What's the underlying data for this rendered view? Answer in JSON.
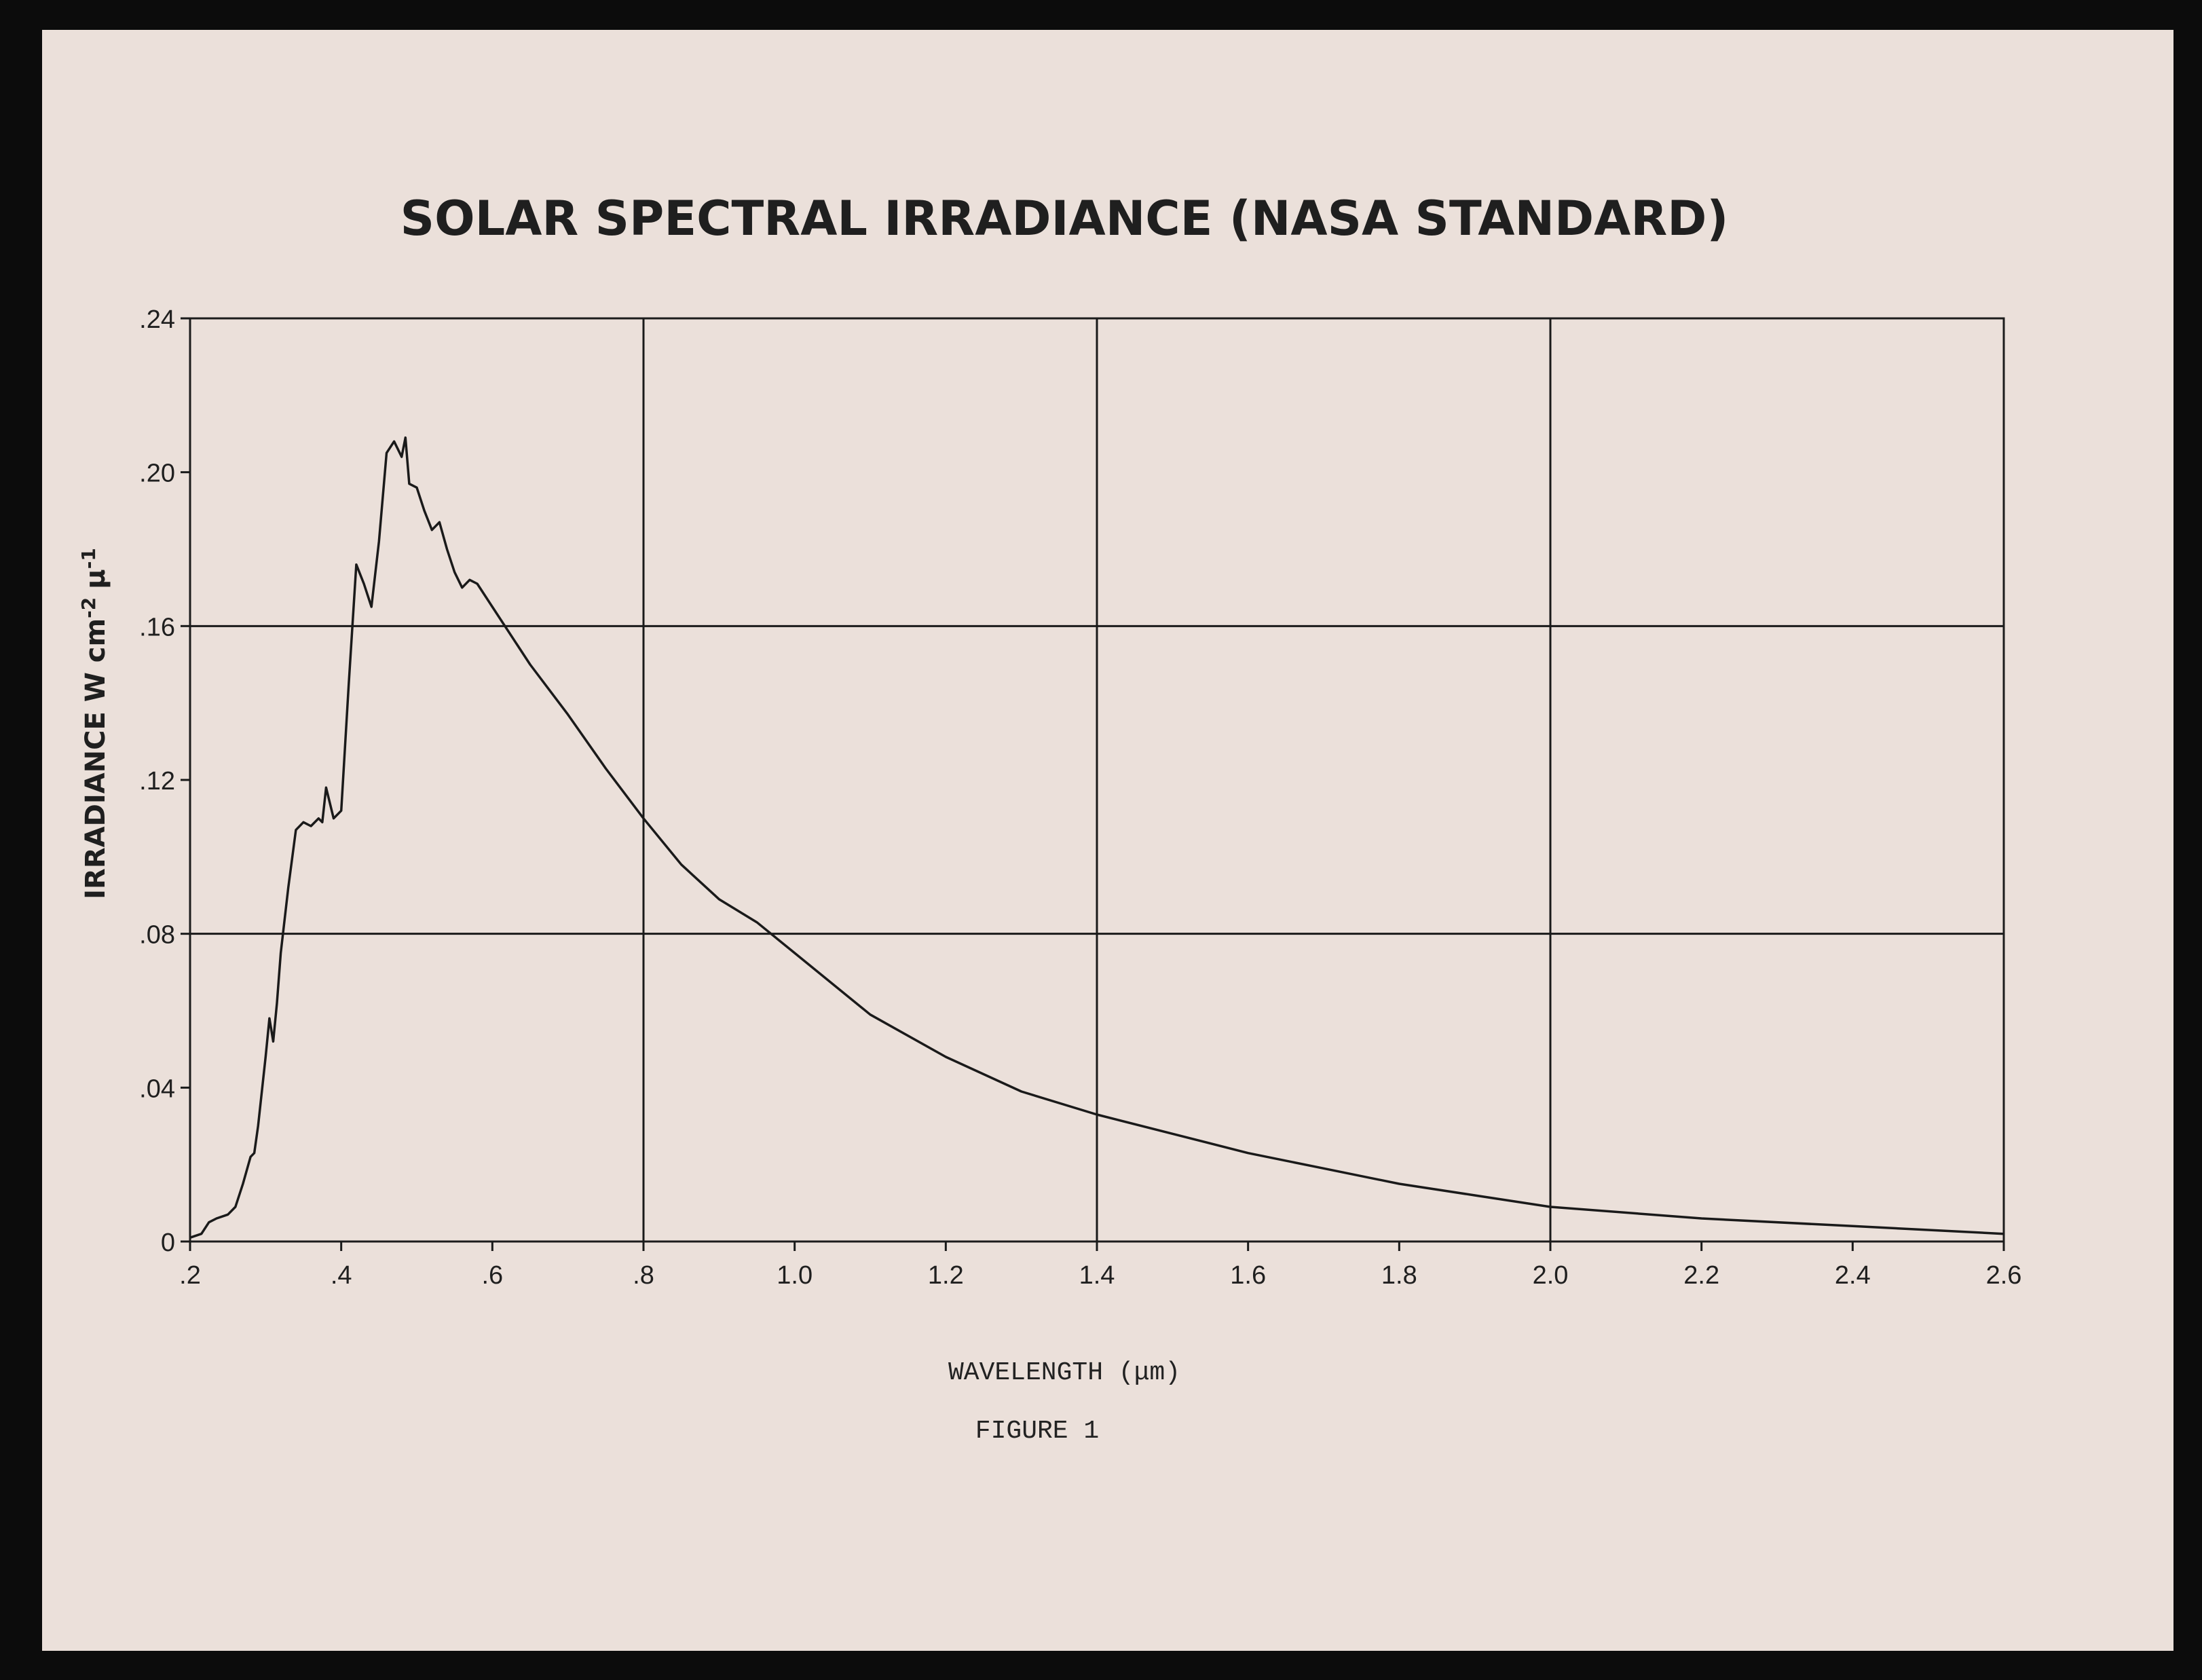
{
  "chart_data": {
    "type": "line",
    "title": "SOLAR SPECTRAL IRRADIANCE (NASA STANDARD)",
    "xlabel": "WAVELENGTH (μm)",
    "ylabel": "IRRADIANCE W cm",
    "ylabel_sup1": "-2",
    "ylabel_mu": "μ",
    "ylabel_sup2": "-1",
    "caption": "FIGURE 1",
    "xlim": [
      0.2,
      2.6
    ],
    "ylim": [
      0,
      0.24
    ],
    "grid": true,
    "x_ticks": [
      0.2,
      0.4,
      0.6,
      0.8,
      1.0,
      1.2,
      1.4,
      1.6,
      1.8,
      2.0,
      2.2,
      2.4,
      2.6
    ],
    "x_tick_labels": [
      ".2",
      ".4",
      ".6",
      ".8",
      "1.0",
      "1.2",
      "1.4",
      "1.6",
      "1.8",
      "2.0",
      "2.2",
      "2.4",
      "2.6"
    ],
    "y_ticks": [
      0,
      0.04,
      0.08,
      0.12,
      0.16,
      0.2,
      0.24
    ],
    "y_tick_labels": [
      "0",
      ".04",
      ".08",
      ".12",
      ".16",
      ".20",
      ".24"
    ],
    "x_grid": [
      0.8,
      1.4,
      2.0
    ],
    "y_grid": [
      0.08,
      0.16
    ],
    "color": "#1a1a1a",
    "series": [
      {
        "x": [
          0.2,
          0.215,
          0.225,
          0.235,
          0.25,
          0.26,
          0.27,
          0.28,
          0.285,
          0.29,
          0.3,
          0.305,
          0.31,
          0.315,
          0.32,
          0.33,
          0.34,
          0.35,
          0.36,
          0.37,
          0.375,
          0.38,
          0.39,
          0.4,
          0.41,
          0.42,
          0.43,
          0.44,
          0.45,
          0.46,
          0.47,
          0.48,
          0.485,
          0.49,
          0.5,
          0.51,
          0.52,
          0.53,
          0.54,
          0.55,
          0.56,
          0.57,
          0.58,
          0.6,
          0.65,
          0.7,
          0.75,
          0.8,
          0.85,
          0.9,
          0.95,
          1.0,
          1.1,
          1.2,
          1.3,
          1.4,
          1.5,
          1.6,
          1.7,
          1.8,
          1.9,
          2.0,
          2.2,
          2.4,
          2.6
        ],
        "values": [
          0.001,
          0.002,
          0.005,
          0.006,
          0.007,
          0.009,
          0.015,
          0.022,
          0.023,
          0.03,
          0.048,
          0.058,
          0.052,
          0.062,
          0.075,
          0.092,
          0.107,
          0.109,
          0.108,
          0.11,
          0.109,
          0.118,
          0.11,
          0.112,
          0.145,
          0.176,
          0.171,
          0.165,
          0.182,
          0.205,
          0.208,
          0.204,
          0.209,
          0.197,
          0.196,
          0.19,
          0.185,
          0.187,
          0.18,
          0.174,
          0.17,
          0.172,
          0.171,
          0.165,
          0.15,
          0.137,
          0.123,
          0.11,
          0.098,
          0.089,
          0.083,
          0.075,
          0.059,
          0.048,
          0.039,
          0.033,
          0.028,
          0.023,
          0.019,
          0.015,
          0.012,
          0.009,
          0.006,
          0.004,
          0.002
        ]
      }
    ]
  }
}
